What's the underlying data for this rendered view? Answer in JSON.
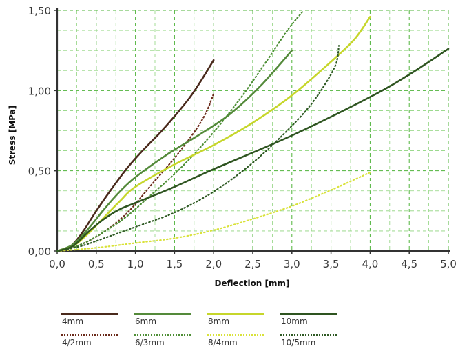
{
  "chart_data": {
    "type": "line",
    "xlabel": "Deflection [mm]",
    "ylabel": "Stress [MPa]",
    "xlim": [
      0,
      5
    ],
    "ylim": [
      0,
      1.5
    ],
    "x_ticks": [
      "0,0",
      "0,5",
      "1,0",
      "1,5",
      "2,0",
      "2,5",
      "3,0",
      "3,5",
      "4,0",
      "4,5",
      "5,0"
    ],
    "y_ticks": [
      "0,00",
      "0,50",
      "1,00",
      "1,50"
    ],
    "grid": true,
    "legend_position": "bottom",
    "series": [
      {
        "name": "4mm",
        "color": "#4a2a1c",
        "style": "solid",
        "points": [
          [
            0,
            0
          ],
          [
            0.15,
            0.02
          ],
          [
            0.3,
            0.1
          ],
          [
            0.5,
            0.25
          ],
          [
            0.7,
            0.39
          ],
          [
            0.9,
            0.52
          ],
          [
            1.1,
            0.63
          ],
          [
            1.3,
            0.73
          ],
          [
            1.5,
            0.84
          ],
          [
            1.7,
            0.96
          ],
          [
            1.85,
            1.07
          ],
          [
            2.0,
            1.19
          ]
        ]
      },
      {
        "name": "4/2mm",
        "color": "#6b2a1a",
        "style": "dotted",
        "points": [
          [
            0,
            0
          ],
          [
            0.3,
            0.04
          ],
          [
            0.6,
            0.12
          ],
          [
            0.9,
            0.24
          ],
          [
            1.2,
            0.41
          ],
          [
            1.5,
            0.58
          ],
          [
            1.75,
            0.74
          ],
          [
            1.9,
            0.86
          ],
          [
            2.0,
            0.98
          ]
        ]
      },
      {
        "name": "6mm",
        "color": "#548a3a",
        "style": "solid",
        "points": [
          [
            0,
            0
          ],
          [
            0.2,
            0.04
          ],
          [
            0.4,
            0.14
          ],
          [
            0.6,
            0.26
          ],
          [
            0.8,
            0.37
          ],
          [
            1.0,
            0.46
          ],
          [
            1.4,
            0.6
          ],
          [
            1.8,
            0.72
          ],
          [
            2.2,
            0.85
          ],
          [
            2.6,
            1.03
          ],
          [
            3.0,
            1.25
          ]
        ]
      },
      {
        "name": "6/3mm",
        "color": "#4e8f36",
        "style": "dotted",
        "points": [
          [
            0,
            0
          ],
          [
            0.3,
            0.04
          ],
          [
            0.6,
            0.12
          ],
          [
            0.9,
            0.22
          ],
          [
            1.2,
            0.35
          ],
          [
            1.5,
            0.48
          ],
          [
            1.8,
            0.63
          ],
          [
            2.1,
            0.8
          ],
          [
            2.4,
            0.99
          ],
          [
            2.7,
            1.2
          ],
          [
            2.95,
            1.38
          ],
          [
            3.15,
            1.5
          ]
        ]
      },
      {
        "name": "8mm",
        "color": "#c6d62b",
        "style": "solid",
        "points": [
          [
            0,
            0
          ],
          [
            0.2,
            0.03
          ],
          [
            0.4,
            0.11
          ],
          [
            0.6,
            0.21
          ],
          [
            0.8,
            0.31
          ],
          [
            1.0,
            0.4
          ],
          [
            1.5,
            0.54
          ],
          [
            2.0,
            0.66
          ],
          [
            2.5,
            0.8
          ],
          [
            3.0,
            0.97
          ],
          [
            3.5,
            1.18
          ],
          [
            3.8,
            1.32
          ],
          [
            4.0,
            1.46
          ]
        ]
      },
      {
        "name": "8/4mm",
        "color": "#d9e23a",
        "style": "dotted",
        "points": [
          [
            0,
            0
          ],
          [
            0.5,
            0.02
          ],
          [
            1.0,
            0.05
          ],
          [
            1.5,
            0.08
          ],
          [
            2.0,
            0.13
          ],
          [
            2.5,
            0.2
          ],
          [
            3.0,
            0.28
          ],
          [
            3.5,
            0.38
          ],
          [
            4.0,
            0.49
          ]
        ]
      },
      {
        "name": "10mm",
        "color": "#2e5420",
        "style": "solid",
        "points": [
          [
            0,
            0
          ],
          [
            0.2,
            0.03
          ],
          [
            0.4,
            0.12
          ],
          [
            0.6,
            0.2
          ],
          [
            0.8,
            0.26
          ],
          [
            1.0,
            0.3
          ],
          [
            1.5,
            0.4
          ],
          [
            2.0,
            0.51
          ],
          [
            3.0,
            0.72
          ],
          [
            4.0,
            0.96
          ],
          [
            4.5,
            1.1
          ],
          [
            5.0,
            1.26
          ]
        ]
      },
      {
        "name": "10/5mm",
        "color": "#2f5a24",
        "style": "dotted",
        "points": [
          [
            0,
            0
          ],
          [
            0.3,
            0.03
          ],
          [
            0.6,
            0.08
          ],
          [
            1.0,
            0.15
          ],
          [
            1.5,
            0.24
          ],
          [
            2.0,
            0.37
          ],
          [
            2.5,
            0.55
          ],
          [
            3.0,
            0.78
          ],
          [
            3.3,
            0.95
          ],
          [
            3.55,
            1.15
          ],
          [
            3.6,
            1.28
          ]
        ]
      }
    ]
  }
}
